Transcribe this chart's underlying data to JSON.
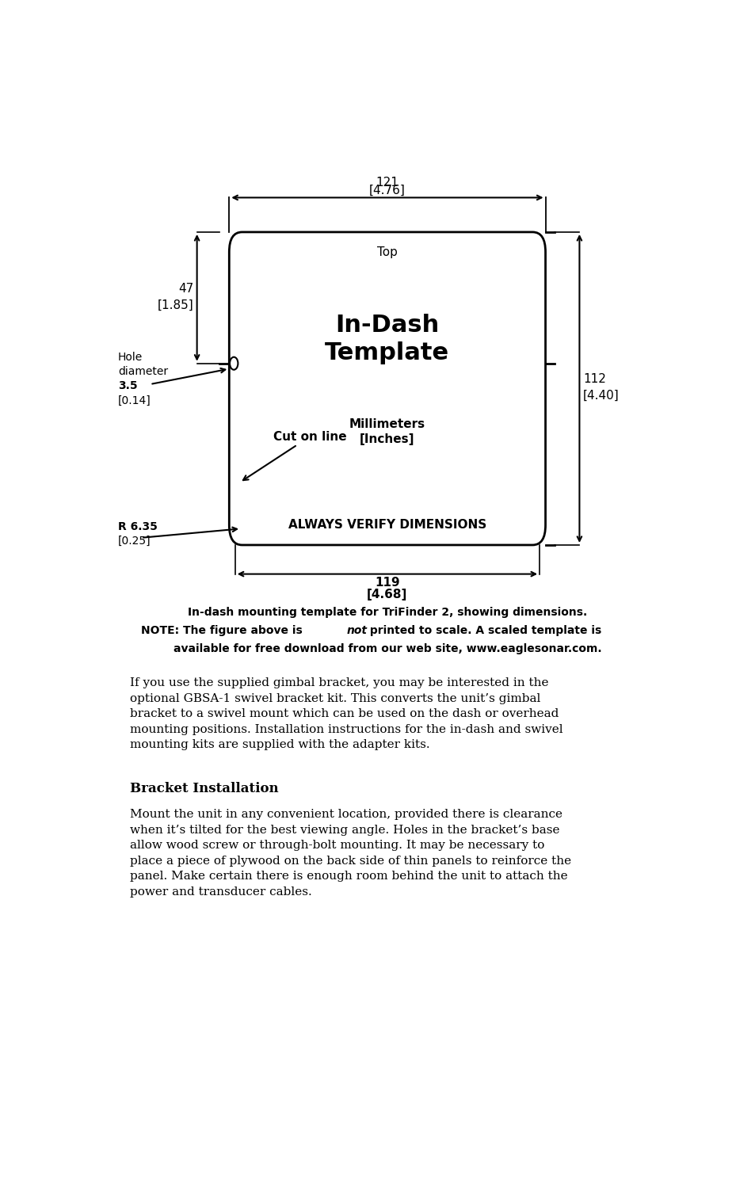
{
  "bg_color": "#ffffff",
  "fig_width": 9.54,
  "fig_height": 14.87,
  "title_text": "In-Dash\nTemplate",
  "subtitle_mm": "Millimeters",
  "subtitle_in": "[Inches]",
  "top_label": "Top",
  "cut_on_line": "Cut on line",
  "always_verify": "ALWAYS VERIFY DIMENSIONS",
  "dim_top_mm": "121",
  "dim_top_in": "[4.76]",
  "dim_left_mm": "47",
  "dim_left_in": "[1.85]",
  "dim_right_mm": "112",
  "dim_right_in": "[4.40]",
  "dim_bot_mm": "119",
  "dim_bot_in": "[4.68]",
  "dim_radius_mm": "R 6.35",
  "dim_radius_in": "[0.25]",
  "hole_line1": "Hole",
  "hole_line2": "diameter",
  "hole_line3": "3.5",
  "hole_line4": "[0.14]",
  "caption_line1": "In-dash mounting template for TriFinder 2, showing dimensions.",
  "caption_line2a": "NOTE: The figure above is ",
  "caption_not": "not",
  "caption_line2b": " printed to scale. A scaled template is",
  "caption_line3": "available for free download from our web site, www.eaglesonar.com.",
  "para1": "If you use the supplied gimbal bracket, you may be interested in the\noptional GBSA-1 swivel bracket kit. This converts the unit’s gimbal\nbracket to a swivel mount which can be used on the dash or overhead\nmounting positions. Installation instructions for the in-dash and swivel\nmounting kits are supplied with the adapter kits.",
  "bracket_heading": "Bracket Installation",
  "para2": "Mount the unit in any convenient location, provided there is clearance\nwhen it’s tilted for the best viewing angle. Holes in the bracket’s base\nallow wood screw or through-bolt mounting. It may be necessary to\nplace a piece of plywood on the back side of thin panels to reinforce the\npanel. Make certain there is enough room behind the unit to attach the\npower and transducer cables."
}
